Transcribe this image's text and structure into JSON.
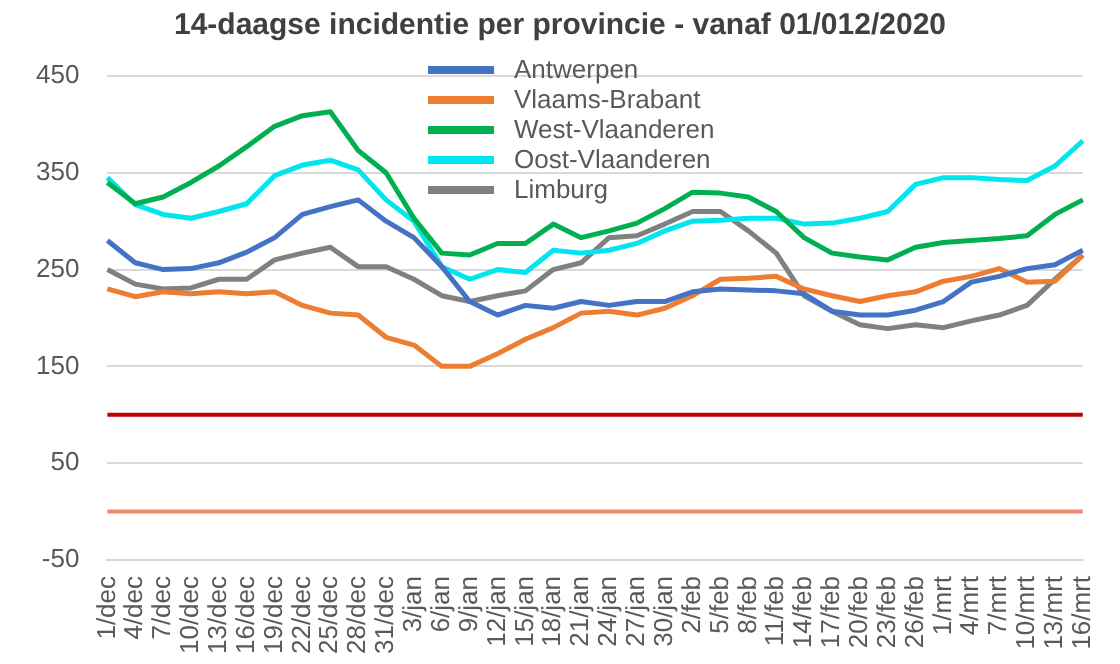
{
  "chart_data": {
    "type": "line",
    "title": "14-daagse incidentie per provincie - vanaf 01/012/2020",
    "categories": [
      "1/dec",
      "4/dec",
      "7/dec",
      "10/dec",
      "13/dec",
      "16/dec",
      "19/dec",
      "22/dec",
      "25/dec",
      "28/dec",
      "31/dec",
      "3/jan",
      "6/jan",
      "9/jan",
      "12/jan",
      "15/jan",
      "18/jan",
      "21/jan",
      "24/jan",
      "27/jan",
      "30/jan",
      "2/feb",
      "5/feb",
      "8/feb",
      "11/feb",
      "14/feb",
      "17/feb",
      "20/feb",
      "23/feb",
      "26/feb",
      "1/mrt",
      "4/mrt",
      "7/mrt",
      "10/mrt",
      "13/mrt",
      "16/mrt"
    ],
    "series": [
      {
        "name": "Antwerpen",
        "color": "#4472c4",
        "values": [
          280,
          257,
          250,
          251,
          257,
          268,
          283,
          307,
          315,
          322,
          300,
          283,
          253,
          217,
          203,
          213,
          210,
          217,
          213,
          217,
          217,
          227,
          230,
          229,
          228,
          225,
          207,
          203,
          203,
          208,
          217,
          237,
          243,
          251,
          255,
          270
        ]
      },
      {
        "name": "Vlaams-Brabant",
        "color": "#ed7d31",
        "values": [
          230,
          222,
          227,
          225,
          227,
          225,
          227,
          213,
          205,
          203,
          180,
          172,
          150,
          150,
          163,
          178,
          190,
          205,
          207,
          203,
          210,
          223,
          240,
          241,
          243,
          230,
          223,
          217,
          223,
          227,
          238,
          243,
          251,
          237,
          238,
          265
        ]
      },
      {
        "name": "West-Vlaanderen",
        "color": "#00b050",
        "values": [
          340,
          318,
          325,
          340,
          357,
          377,
          398,
          409,
          413,
          373,
          350,
          303,
          267,
          265,
          277,
          277,
          297,
          283,
          290,
          298,
          313,
          330,
          329,
          325,
          310,
          283,
          267,
          263,
          260,
          273,
          278,
          280,
          282,
          285,
          307,
          322
        ]
      },
      {
        "name": "Oost-Vlaanderen",
        "color": "#00e5ee",
        "values": [
          345,
          317,
          307,
          303,
          310,
          318,
          347,
          358,
          363,
          353,
          322,
          300,
          253,
          240,
          250,
          247,
          270,
          267,
          270,
          277,
          290,
          300,
          301,
          303,
          303,
          297,
          298,
          303,
          310,
          338,
          345,
          345,
          343,
          342,
          357,
          383
        ]
      },
      {
        "name": "Limburg",
        "color": "#808080",
        "values": [
          250,
          235,
          230,
          231,
          240,
          240,
          260,
          267,
          273,
          253,
          253,
          240,
          223,
          217,
          223,
          228,
          250,
          257,
          283,
          285,
          297,
          310,
          310,
          290,
          267,
          223,
          207,
          193,
          189,
          193,
          190,
          197,
          203,
          213,
          240,
          265
        ]
      }
    ],
    "ylim": [
      -50,
      450
    ],
    "yticks": [
      -50,
      50,
      150,
      250,
      350,
      450
    ],
    "grid": "y",
    "legend": "top",
    "ref_lines": [
      {
        "axis": "y",
        "value": 100,
        "color": "#c00000"
      },
      {
        "axis": "y",
        "value": 0,
        "color": "#f4896b"
      }
    ]
  }
}
